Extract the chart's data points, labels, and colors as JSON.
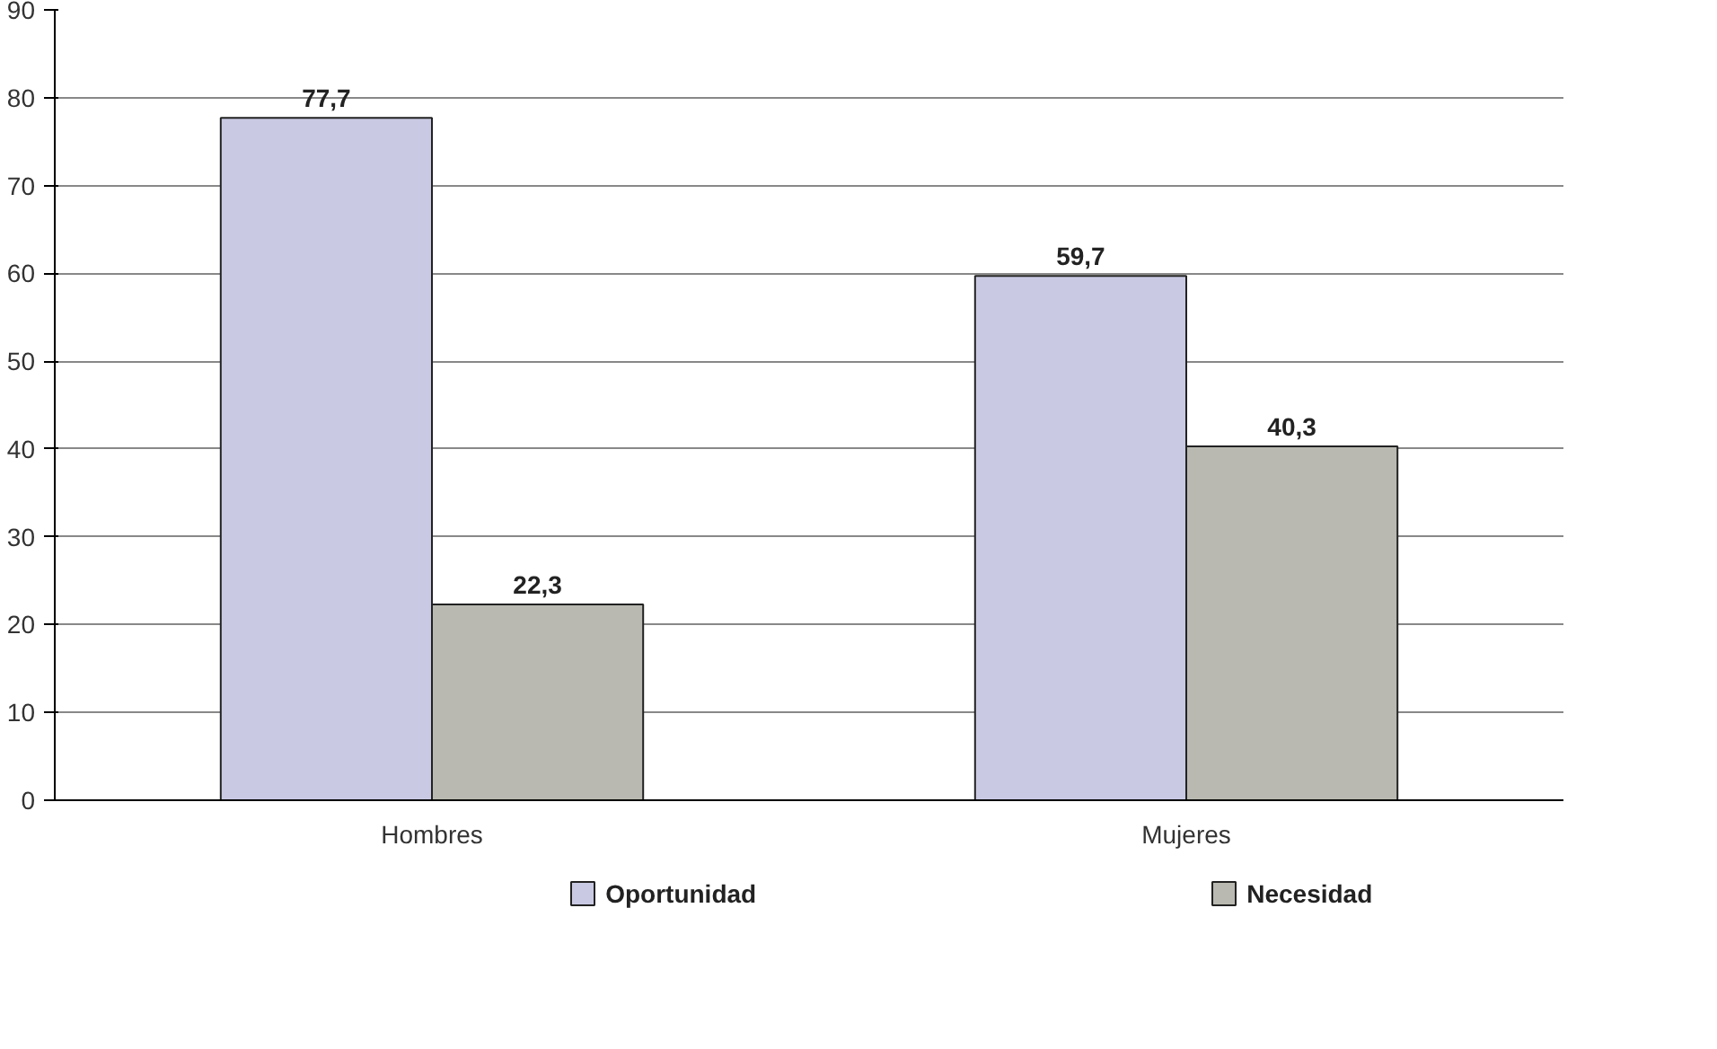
{
  "chart_data": {
    "type": "bar",
    "categories": [
      "Hombres",
      "Mujeres"
    ],
    "series": [
      {
        "name": "Oportunidad",
        "color": "#c9c9e3",
        "values": [
          77.7,
          59.7
        ],
        "value_labels": [
          "77,7",
          "59,7"
        ]
      },
      {
        "name": "Necesidad",
        "color": "#b9b9b1",
        "values": [
          22.3,
          40.3
        ],
        "value_labels": [
          "22,3",
          "40,3"
        ]
      }
    ],
    "ylim": [
      0,
      90
    ],
    "yticks": [
      0,
      10,
      20,
      30,
      40,
      50,
      60,
      70,
      80,
      90
    ],
    "grid": "y",
    "legend": "bottom"
  }
}
